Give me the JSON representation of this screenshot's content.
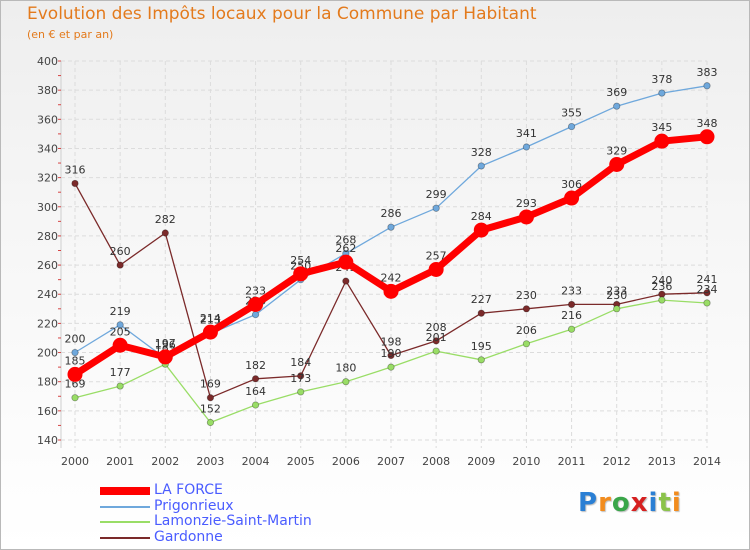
{
  "header": {
    "title": "Evolution des Impôts locaux pour la Commune par Habitant",
    "subtitle": "(en € et par an)"
  },
  "logo": {
    "text": "Proxiti"
  },
  "chart_data": {
    "type": "line",
    "title": "Evolution des Impôts locaux pour la Commune par Habitant",
    "subtitle": "(en € et par an)",
    "categories": [
      "2000",
      "2001",
      "2002",
      "2003",
      "2004",
      "2005",
      "2006",
      "2007",
      "2008",
      "2009",
      "2010",
      "2011",
      "2012",
      "2013",
      "2014"
    ],
    "ylim": [
      140,
      400
    ],
    "yticks": [
      140,
      160,
      180,
      200,
      220,
      240,
      260,
      280,
      300,
      320,
      340,
      360,
      380,
      400
    ],
    "grid": true,
    "legend_position": "bottom-left",
    "series": [
      {
        "name": "LA FORCE",
        "color": "#ff0000",
        "values": [
          185,
          205,
          197,
          214,
          233,
          254,
          262,
          242,
          257,
          284,
          293,
          306,
          329,
          345,
          348
        ]
      },
      {
        "name": "Prigonrieux",
        "color": "#6fa8dc",
        "values": [
          200,
          219,
          196,
          213,
          226,
          250,
          268,
          286,
          299,
          328,
          341,
          355,
          369,
          378,
          383
        ]
      },
      {
        "name": "Lamonzie-Saint-Martin",
        "color": "#99dd66",
        "values": [
          169,
          177,
          192,
          152,
          164,
          173,
          180,
          190,
          201,
          195,
          206,
          216,
          230,
          236,
          234
        ]
      },
      {
        "name": "Gardonne",
        "color": "#7b2a2a",
        "values": [
          316,
          260,
          282,
          169,
          182,
          184,
          249,
          198,
          208,
          227,
          230,
          233,
          233,
          240,
          241
        ]
      }
    ]
  }
}
